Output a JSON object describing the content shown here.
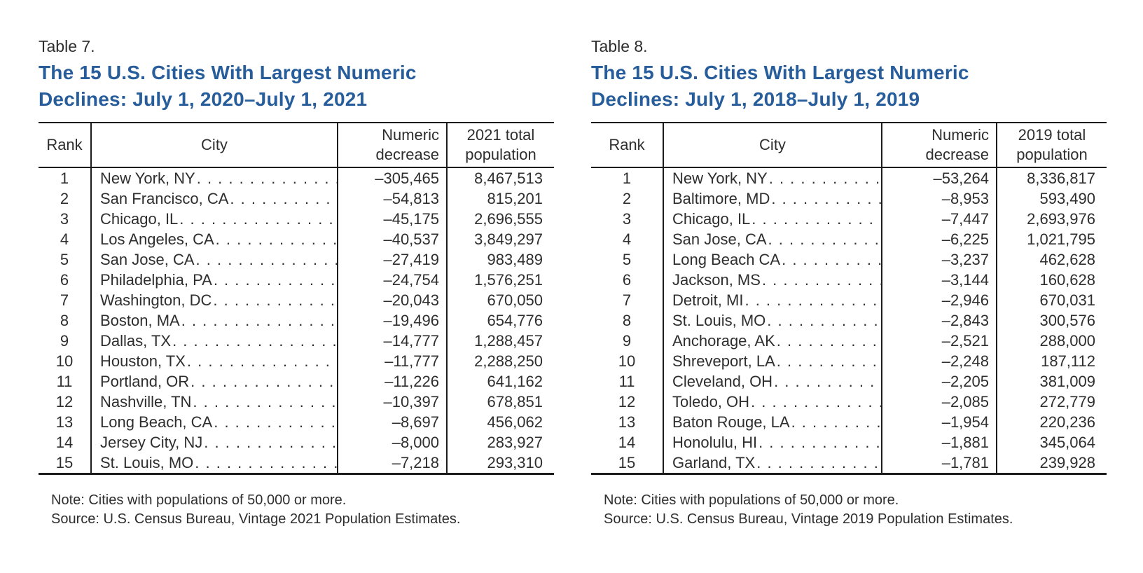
{
  "colors": {
    "title_blue": "#275d9b"
  },
  "tables": [
    {
      "label": "Table 7.",
      "title_line1": "The 15 U.S. Cities With Largest Numeric",
      "title_line2": "Declines: July 1, 2020–July 1, 2021",
      "headers": {
        "rank": "Rank",
        "city": "City",
        "decrease": [
          "Numeric",
          "decrease"
        ],
        "population": [
          "2021 total",
          "population"
        ]
      },
      "rows": [
        {
          "rank": "1",
          "city": "New York, NY",
          "decrease": "–305,465",
          "population": "8,467,513"
        },
        {
          "rank": "2",
          "city": "San Francisco, CA",
          "decrease": "–54,813",
          "population": "815,201"
        },
        {
          "rank": "3",
          "city": "Chicago, IL",
          "decrease": "–45,175",
          "population": "2,696,555"
        },
        {
          "rank": "4",
          "city": "Los Angeles, CA",
          "decrease": "–40,537",
          "population": "3,849,297"
        },
        {
          "rank": "5",
          "city": "San Jose, CA",
          "decrease": "–27,419",
          "population": "983,489"
        },
        {
          "rank": "6",
          "city": "Philadelphia, PA",
          "decrease": "–24,754",
          "population": "1,576,251"
        },
        {
          "rank": "7",
          "city": "Washington, DC",
          "decrease": "–20,043",
          "population": "670,050"
        },
        {
          "rank": "8",
          "city": "Boston, MA",
          "decrease": "–19,496",
          "population": "654,776"
        },
        {
          "rank": "9",
          "city": "Dallas, TX",
          "decrease": "–14,777",
          "population": "1,288,457"
        },
        {
          "rank": "10",
          "city": "Houston, TX",
          "decrease": "–11,777",
          "population": "2,288,250"
        },
        {
          "rank": "11",
          "city": "Portland, OR",
          "decrease": "–11,226",
          "population": "641,162"
        },
        {
          "rank": "12",
          "city": "Nashville, TN",
          "decrease": "–10,397",
          "population": "678,851"
        },
        {
          "rank": "13",
          "city": "Long Beach, CA",
          "decrease": "–8,697",
          "population": "456,062"
        },
        {
          "rank": "14",
          "city": "Jersey City, NJ",
          "decrease": "–8,000",
          "population": "283,927"
        },
        {
          "rank": "15",
          "city": "St. Louis, MO",
          "decrease": "–7,218",
          "population": "293,310"
        }
      ],
      "note": "Note: Cities with populations of 50,000 or more.",
      "source": "Source: U.S. Census Bureau, Vintage 2021 Population Estimates."
    },
    {
      "label": "Table 8.",
      "title_line1": "The 15 U.S. Cities With Largest Numeric",
      "title_line2": "Declines: July 1, 2018–July 1, 2019",
      "headers": {
        "rank": "Rank",
        "city": "City",
        "decrease": [
          "Numeric",
          "decrease"
        ],
        "population": [
          "2019 total",
          "population"
        ]
      },
      "rows": [
        {
          "rank": "1",
          "city": "New York, NY",
          "decrease": "–53,264",
          "population": "8,336,817"
        },
        {
          "rank": "2",
          "city": "Baltimore, MD",
          "decrease": "–8,953",
          "population": "593,490"
        },
        {
          "rank": "3",
          "city": "Chicago, IL",
          "decrease": "–7,447",
          "population": "2,693,976"
        },
        {
          "rank": "4",
          "city": "San Jose, CA",
          "decrease": "–6,225",
          "population": "1,021,795"
        },
        {
          "rank": "5",
          "city": "Long Beach CA",
          "decrease": "–3,237",
          "population": "462,628"
        },
        {
          "rank": "6",
          "city": "Jackson, MS",
          "decrease": "–3,144",
          "population": "160,628"
        },
        {
          "rank": "7",
          "city": "Detroit, MI",
          "decrease": "–2,946",
          "population": "670,031"
        },
        {
          "rank": "8",
          "city": "St. Louis, MO",
          "decrease": "–2,843",
          "population": "300,576"
        },
        {
          "rank": "9",
          "city": "Anchorage, AK",
          "decrease": "–2,521",
          "population": "288,000"
        },
        {
          "rank": "10",
          "city": "Shreveport, LA",
          "decrease": "–2,248",
          "population": "187,112"
        },
        {
          "rank": "11",
          "city": "Cleveland, OH",
          "decrease": "–2,205",
          "population": "381,009"
        },
        {
          "rank": "12",
          "city": "Toledo, OH",
          "decrease": "–2,085",
          "population": "272,779"
        },
        {
          "rank": "13",
          "city": "Baton Rouge, LA",
          "decrease": "–1,954",
          "population": "220,236"
        },
        {
          "rank": "14",
          "city": "Honolulu, HI",
          "decrease": "–1,881",
          "population": "345,064"
        },
        {
          "rank": "15",
          "city": "Garland, TX",
          "decrease": "–1,781",
          "population": "239,928"
        }
      ],
      "note": "Note: Cities with populations of 50,000 or more.",
      "source": "Source: U.S. Census Bureau, Vintage 2019 Population Estimates."
    }
  ]
}
